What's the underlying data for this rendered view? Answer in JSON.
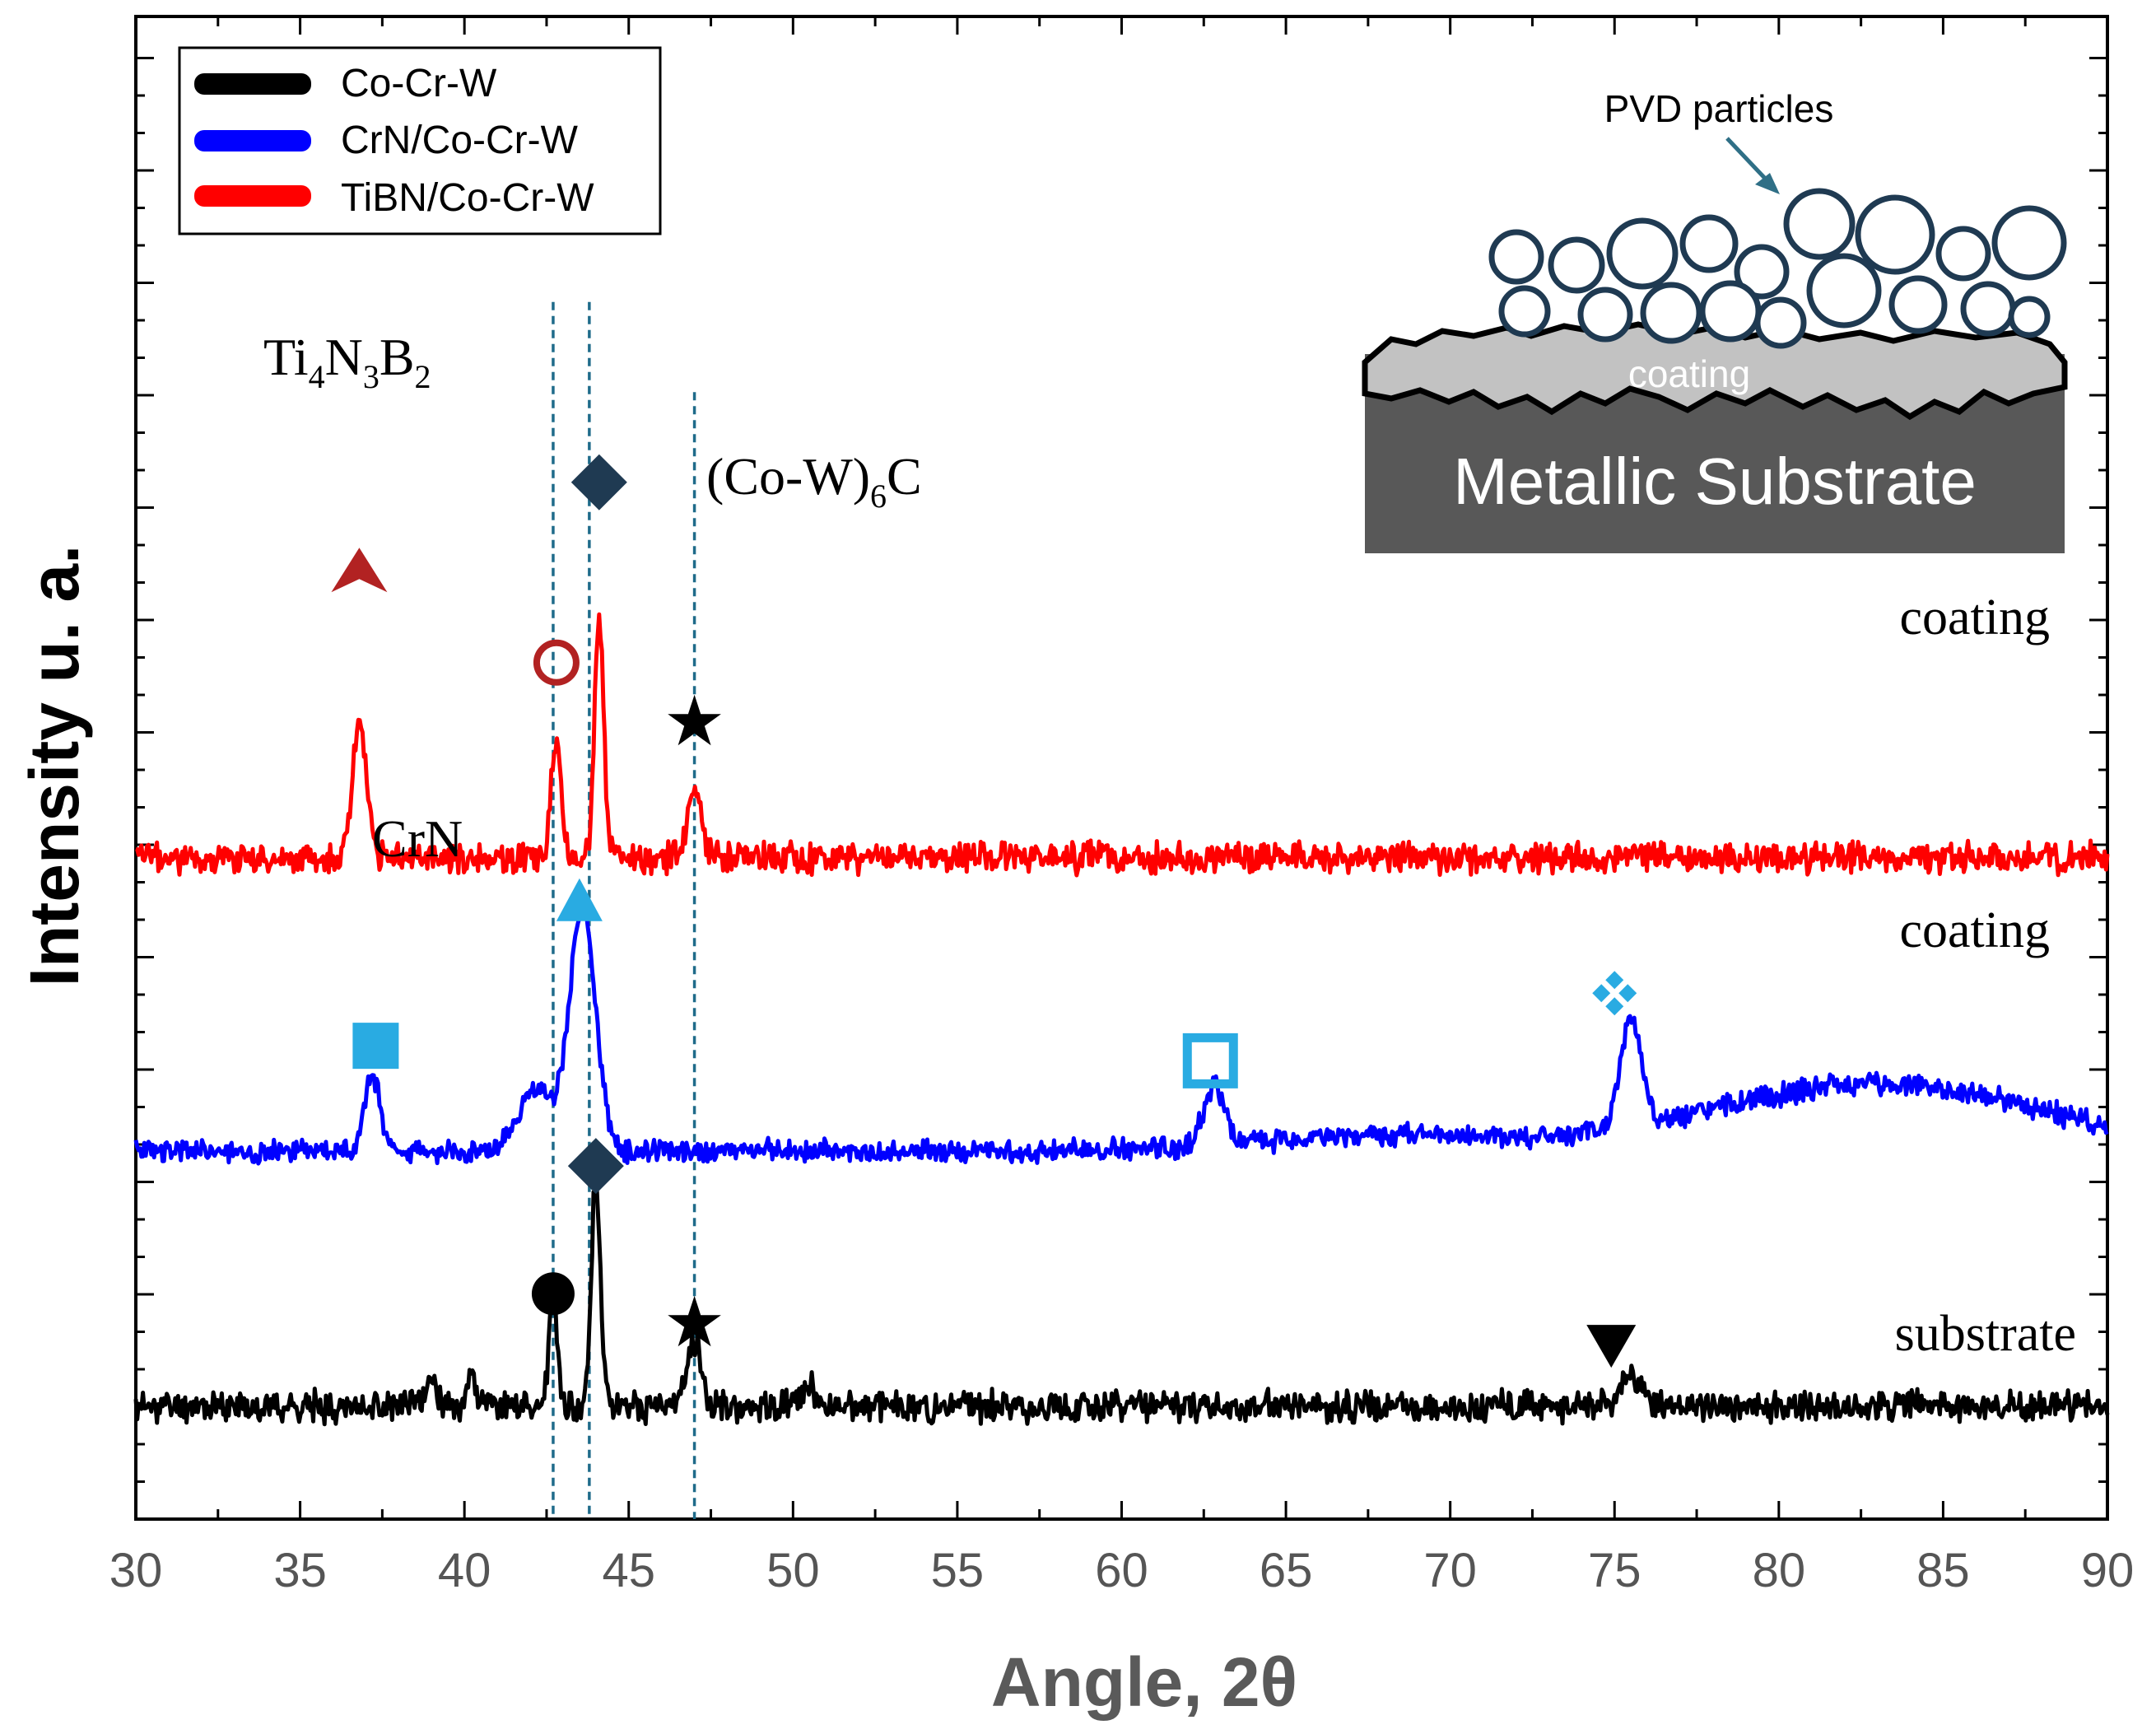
{
  "chart_data": {
    "type": "line",
    "title": "",
    "xlabel": "Angle, 2θ",
    "ylabel": "Intensity u. a.",
    "xlim": [
      30,
      90
    ],
    "ylim": [
      0,
      100
    ],
    "x_ticks": [
      "30",
      "35",
      "40",
      "45",
      "50",
      "55",
      "60",
      "65",
      "70",
      "75",
      "80",
      "85",
      "90"
    ],
    "grid": false,
    "legend": {
      "position": "top-left",
      "entries": [
        {
          "label": "Co-Cr-W",
          "color": "#000000"
        },
        {
          "label": "CrN/Co-Cr-W",
          "color": "#0000ff"
        },
        {
          "label": "TiBN/Co-Cr-W",
          "color": "#ff0000"
        }
      ]
    },
    "series": [
      {
        "name": "Co-Cr-W",
        "color": "#000000",
        "baseline": 7.5,
        "noise": 0.8,
        "seed": 11,
        "peaks": [
          [
            39,
            1.8,
            0.25
          ],
          [
            40.2,
            2.2,
            0.2
          ],
          [
            42.7,
            7.5,
            0.18
          ],
          [
            44.0,
            15.0,
            0.2
          ],
          [
            47.0,
            4.5,
            0.3
          ],
          [
            50.5,
            1.5,
            0.3
          ],
          [
            75.5,
            2.0,
            0.4
          ]
        ]
      },
      {
        "name": "CrN/Co-Cr-W",
        "color": "#0000ff",
        "baseline": 24.5,
        "noise": 0.6,
        "seed": 23,
        "broad": [
          [
            83,
            4.5,
            7
          ],
          [
            68,
            1.0,
            5
          ]
        ],
        "peaks": [
          [
            37.2,
            5.0,
            0.35
          ],
          [
            43.6,
            16.0,
            0.55
          ],
          [
            42.2,
            4.0,
            0.8
          ],
          [
            62.8,
            4.0,
            0.45
          ],
          [
            75.5,
            7.5,
            0.45
          ]
        ]
      },
      {
        "name": "TiBN/Co-Cr-W",
        "color": "#ff0000",
        "baseline": 44.0,
        "noise": 0.8,
        "seed": 37,
        "peaks": [
          [
            36.8,
            9.0,
            0.3
          ],
          [
            42.8,
            8.0,
            0.22
          ],
          [
            44.1,
            16.0,
            0.2
          ],
          [
            47.0,
            4.5,
            0.28
          ]
        ]
      }
    ],
    "reference_lines_x": [
      42.7,
      43.8,
      47.0
    ],
    "trace_labels": [
      {
        "text": "coating",
        "series": "TiBN/Co-Cr-W",
        "x": 86,
        "y": 50
      },
      {
        "text": "coating",
        "series": "CrN/Co-Cr-W",
        "x": 86,
        "y": 33.5
      },
      {
        "text": "substrate",
        "series": "Co-Cr-W",
        "x": 86,
        "y": 10.5
      }
    ],
    "phase_labels": [
      {
        "text": "Ti",
        "sub1": "4",
        "mid1": "N",
        "sub2": "3",
        "mid2": "B",
        "sub3": "2",
        "x": 37.2,
        "y": 76
      },
      {
        "text": "(Co-W)",
        "sub": "6",
        "tail": "C",
        "x": 48.5,
        "y": 62.5
      },
      {
        "text": "CrN",
        "x": 39.5,
        "y": 38
      }
    ],
    "markers": [
      {
        "shape": "chevron-up",
        "color": "#b22222",
        "x": 36.8,
        "y": 63
      },
      {
        "shape": "circle-open",
        "color": "#b22222",
        "x": 42.8,
        "y": 57
      },
      {
        "shape": "diamond",
        "color": "#1f3a52",
        "x": 44.1,
        "y": 69
      },
      {
        "shape": "star",
        "color": "#000000",
        "x": 47.0,
        "y": 53
      },
      {
        "shape": "triangle-up",
        "color": "#29abe2",
        "x": 43.5,
        "y": 41
      },
      {
        "shape": "square",
        "color": "#29abe2",
        "x": 37.3,
        "y": 31.5
      },
      {
        "shape": "square-open",
        "color": "#29abe2",
        "x": 62.7,
        "y": 30.5
      },
      {
        "shape": "four-diamonds",
        "color": "#29abe2",
        "x": 75.0,
        "y": 35
      },
      {
        "shape": "diamond",
        "color": "#1f3a52",
        "x": 44.0,
        "y": 23.5
      },
      {
        "shape": "circle",
        "color": "#000000",
        "x": 42.7,
        "y": 15
      },
      {
        "shape": "star",
        "color": "#000000",
        "x": 47.0,
        "y": 13
      },
      {
        "shape": "triangle-down",
        "color": "#000000",
        "x": 74.9,
        "y": 11.5
      }
    ],
    "inset": {
      "title": "PVD particles",
      "coating_label": "coating",
      "substrate_label": "Metallic Substrate"
    }
  }
}
